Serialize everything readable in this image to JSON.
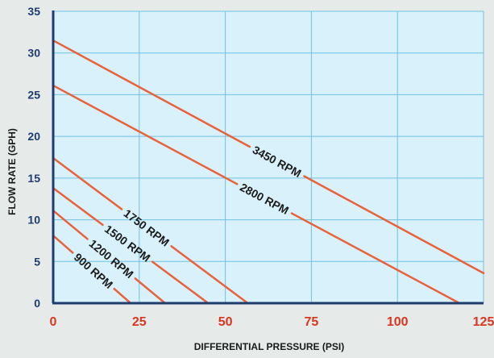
{
  "chart_data": {
    "type": "line",
    "title": "",
    "xlabel": "DIFFERENTIAL PRESSURE  (PSI)",
    "ylabel": "FLOW RATE (GPH)",
    "xlim": [
      0,
      125
    ],
    "ylim": [
      0,
      35
    ],
    "x_ticks": [
      0,
      25,
      50,
      75,
      100,
      125
    ],
    "y_ticks": [
      0,
      5,
      10,
      15,
      20,
      25,
      30,
      35
    ],
    "grid": true,
    "series": [
      {
        "name": "3450 RPM",
        "x": [
          0,
          125
        ],
        "y": [
          31.5,
          3.6
        ]
      },
      {
        "name": "2800 RPM",
        "x": [
          0,
          118
        ],
        "y": [
          26.1,
          0
        ]
      },
      {
        "name": "1750 RPM",
        "x": [
          0,
          56.5
        ],
        "y": [
          17.4,
          0
        ]
      },
      {
        "name": "1500 RPM",
        "x": [
          0,
          45
        ],
        "y": [
          13.8,
          0
        ]
      },
      {
        "name": "1200 RPM",
        "x": [
          0,
          32.5
        ],
        "y": [
          11.1,
          0
        ]
      },
      {
        "name": "900 RPM",
        "x": [
          0,
          22.5
        ],
        "y": [
          8.1,
          0
        ]
      }
    ]
  },
  "colors": {
    "background": "#e6ebea",
    "plot_fill": "#d9f1fb",
    "grid": "#6fc2e4",
    "axis": "#1f3b6f",
    "line": "#e8623c",
    "x_tick_text": "#d9361f",
    "y_tick_text": "#1f3b6f"
  }
}
